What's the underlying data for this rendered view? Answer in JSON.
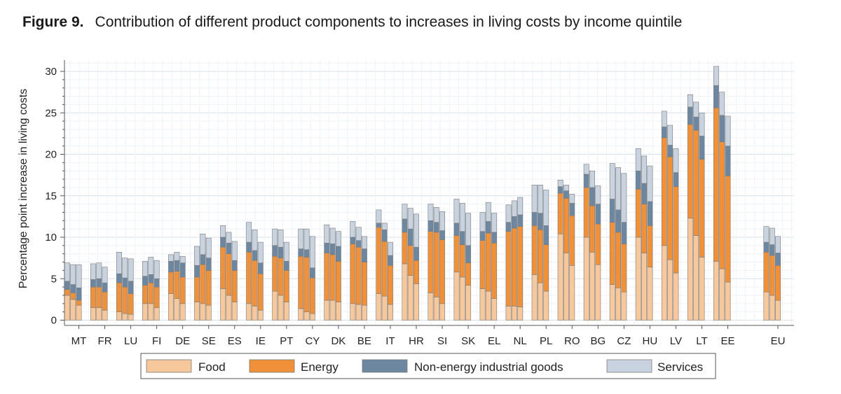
{
  "figure": {
    "number": "Figure 9.",
    "caption": "Contribution of different product components to increases in living costs by income quintile"
  },
  "chart_data": {
    "type": "bar",
    "stacked": true,
    "grouped_by": "income quintile",
    "title": "Contribution of different product components to increases in living costs by income quintile",
    "xlabel": "",
    "ylabel": "Percentage point increase in living costs",
    "ylim": [
      0,
      30
    ],
    "yticks": [
      0,
      5,
      10,
      15,
      20,
      25,
      30
    ],
    "grid": true,
    "legend_position": "bottom",
    "series_names": [
      "Food",
      "Energy",
      "Non-energy industrial goods",
      "Services"
    ],
    "colors": {
      "Food": "#f6c89b",
      "Energy": "#f0913a",
      "Non-energy industrial goods": "#6d87a0",
      "Services": "#c8d3df"
    },
    "categories": [
      "MT",
      "FR",
      "LU",
      "FI",
      "DE",
      "SE",
      "ES",
      "IE",
      "PT",
      "CY",
      "DK",
      "BE",
      "IT",
      "HR",
      "SI",
      "SK",
      "EL",
      "NL",
      "PL",
      "RO",
      "BG",
      "CZ",
      "HU",
      "LV",
      "LT",
      "EE",
      "EU"
    ],
    "groups": [
      {
        "country": "MT",
        "quintiles": [
          [
            3.0,
            0.7,
            1.0,
            2.2
          ],
          [
            2.5,
            0.8,
            1.0,
            2.4
          ],
          [
            1.8,
            0.6,
            1.5,
            2.8
          ],
          [
            0,
            0,
            0,
            0
          ],
          [
            0,
            0,
            0,
            0
          ]
        ]
      },
      {
        "country": "FR",
        "quintiles": [
          [
            1.5,
            2.5,
            0.9,
            1.9
          ],
          [
            1.5,
            2.5,
            1.0,
            1.9
          ],
          [
            1.2,
            2.2,
            1.1,
            1.9
          ],
          [
            0,
            0,
            0,
            0
          ],
          [
            0,
            0,
            0,
            0
          ]
        ]
      },
      {
        "country": "LU",
        "quintiles": [
          [
            1.0,
            3.5,
            1.1,
            2.6
          ],
          [
            0.8,
            3.2,
            1.1,
            2.4
          ],
          [
            0.7,
            2.5,
            1.5,
            2.7
          ],
          [
            0,
            0,
            0,
            0
          ],
          [
            0,
            0,
            0,
            0
          ]
        ]
      },
      {
        "country": "FI",
        "quintiles": [
          [
            2.0,
            2.2,
            1.1,
            1.8
          ],
          [
            2.0,
            2.5,
            1.0,
            2.1
          ],
          [
            1.5,
            2.5,
            1.0,
            2.2
          ],
          [
            0,
            0,
            0,
            0
          ],
          [
            0,
            0,
            0,
            0
          ]
        ]
      },
      {
        "country": "DE",
        "quintiles": [
          [
            3.2,
            2.6,
            1.3,
            0.8
          ],
          [
            2.6,
            3.3,
            1.3,
            1.0
          ],
          [
            2.0,
            3.2,
            1.7,
            0.8
          ],
          [
            0,
            0,
            0,
            0
          ],
          [
            0,
            0,
            0,
            0
          ]
        ]
      },
      {
        "country": "SE",
        "quintiles": [
          [
            2.2,
            3.0,
            1.4,
            2.3
          ],
          [
            2.0,
            4.7,
            1.2,
            2.5
          ],
          [
            1.8,
            4.2,
            1.5,
            2.4
          ],
          [
            0,
            0,
            0,
            0
          ],
          [
            0,
            0,
            0,
            0
          ]
        ]
      },
      {
        "country": "ES",
        "quintiles": [
          [
            3.8,
            5.0,
            1.2,
            1.4
          ],
          [
            3.0,
            5.0,
            1.3,
            1.3
          ],
          [
            2.2,
            3.8,
            1.2,
            2.3
          ],
          [
            0,
            0,
            0,
            0
          ],
          [
            0,
            0,
            0,
            0
          ]
        ]
      },
      {
        "country": "IE",
        "quintiles": [
          [
            2.0,
            6.2,
            1.2,
            2.4
          ],
          [
            1.7,
            5.5,
            1.2,
            2.5
          ],
          [
            1.2,
            4.4,
            1.3,
            2.5
          ],
          [
            0,
            0,
            0,
            0
          ],
          [
            0,
            0,
            0,
            0
          ]
        ]
      },
      {
        "country": "PT",
        "quintiles": [
          [
            3.5,
            4.2,
            1.3,
            2.0
          ],
          [
            3.0,
            4.5,
            1.3,
            2.1
          ],
          [
            2.2,
            3.8,
            1.1,
            2.3
          ],
          [
            0,
            0,
            0,
            0
          ],
          [
            0,
            0,
            0,
            0
          ]
        ]
      },
      {
        "country": "CY",
        "quintiles": [
          [
            1.4,
            6.3,
            0.9,
            2.4
          ],
          [
            1.0,
            6.6,
            0.9,
            2.5
          ],
          [
            0.8,
            4.3,
            1.2,
            3.8
          ],
          [
            0,
            0,
            0,
            0
          ],
          [
            0,
            0,
            0,
            0
          ]
        ]
      },
      {
        "country": "DK",
        "quintiles": [
          [
            2.4,
            5.7,
            1.2,
            2.2
          ],
          [
            2.4,
            5.5,
            1.3,
            1.9
          ],
          [
            2.2,
            4.9,
            1.8,
            1.8
          ],
          [
            0,
            0,
            0,
            0
          ],
          [
            0,
            0,
            0,
            0
          ]
        ]
      },
      {
        "country": "BE",
        "quintiles": [
          [
            2.0,
            7.2,
            0.8,
            1.9
          ],
          [
            1.9,
            6.9,
            0.8,
            1.6
          ],
          [
            1.8,
            5.2,
            1.6,
            1.5
          ],
          [
            0,
            0,
            0,
            0
          ],
          [
            0,
            0,
            0,
            0
          ]
        ]
      },
      {
        "country": "IT",
        "quintiles": [
          [
            3.2,
            8.0,
            0.5,
            1.6
          ],
          [
            2.9,
            6.6,
            1.4,
            0.8
          ],
          [
            1.9,
            4.7,
            1.2,
            1.6
          ],
          [
            0,
            0,
            0,
            0
          ],
          [
            0,
            0,
            0,
            0
          ]
        ]
      },
      {
        "country": "HR",
        "quintiles": [
          [
            6.8,
            3.8,
            1.6,
            1.8
          ],
          [
            5.4,
            3.6,
            2.0,
            2.5
          ],
          [
            4.4,
            2.8,
            1.6,
            4.0
          ],
          [
            0,
            0,
            0,
            0
          ],
          [
            0,
            0,
            0,
            0
          ]
        ]
      },
      {
        "country": "SI",
        "quintiles": [
          [
            3.3,
            7.4,
            1.3,
            2.0
          ],
          [
            2.8,
            7.8,
            1.2,
            1.8
          ],
          [
            2.0,
            7.7,
            1.1,
            2.3
          ],
          [
            0,
            0,
            0,
            0
          ],
          [
            0,
            0,
            0,
            0
          ]
        ]
      },
      {
        "country": "SK",
        "quintiles": [
          [
            5.8,
            4.4,
            1.5,
            2.9
          ],
          [
            5.2,
            3.9,
            1.6,
            3.4
          ],
          [
            4.2,
            2.7,
            2.1,
            3.9
          ],
          [
            0,
            0,
            0,
            0
          ],
          [
            0,
            0,
            0,
            0
          ]
        ]
      },
      {
        "country": "EL",
        "quintiles": [
          [
            3.8,
            5.8,
            1.1,
            2.3
          ],
          [
            3.5,
            7.0,
            1.4,
            2.3
          ],
          [
            2.6,
            6.7,
            1.3,
            2.3
          ],
          [
            0,
            0,
            0,
            0
          ],
          [
            0,
            0,
            0,
            0
          ]
        ]
      },
      {
        "country": "NL",
        "quintiles": [
          [
            1.7,
            9.0,
            1.1,
            2.1
          ],
          [
            1.7,
            9.4,
            1.4,
            1.9
          ],
          [
            1.6,
            9.7,
            1.4,
            2.1
          ],
          [
            0,
            0,
            0,
            0
          ],
          [
            0,
            0,
            0,
            0
          ]
        ]
      },
      {
        "country": "PL",
        "quintiles": [
          [
            5.5,
            5.9,
            1.6,
            3.3
          ],
          [
            4.5,
            6.4,
            2.0,
            3.4
          ],
          [
            3.5,
            5.6,
            2.3,
            4.3
          ],
          [
            0,
            0,
            0,
            0
          ],
          [
            0,
            0,
            0,
            0
          ]
        ]
      },
      {
        "country": "RO",
        "quintiles": [
          [
            10.4,
            4.9,
            0.8,
            0.8
          ],
          [
            8.1,
            6.6,
            0.9,
            0.7
          ],
          [
            6.6,
            6.0,
            1.5,
            1.1
          ],
          [
            0,
            0,
            0,
            0
          ],
          [
            0,
            0,
            0,
            0
          ]
        ]
      },
      {
        "country": "BG",
        "quintiles": [
          [
            10.0,
            6.0,
            1.6,
            1.2
          ],
          [
            8.2,
            5.6,
            2.2,
            2.0
          ],
          [
            6.7,
            4.9,
            2.4,
            2.2
          ],
          [
            0,
            0,
            0,
            0
          ],
          [
            0,
            0,
            0,
            0
          ]
        ]
      },
      {
        "country": "CZ",
        "quintiles": [
          [
            4.3,
            7.5,
            2.8,
            4.3
          ],
          [
            3.9,
            6.7,
            2.7,
            5.1
          ],
          [
            3.4,
            5.8,
            2.6,
            5.9
          ],
          [
            0,
            0,
            0,
            0
          ],
          [
            0,
            0,
            0,
            0
          ]
        ]
      },
      {
        "country": "HU",
        "quintiles": [
          [
            10.0,
            5.8,
            2.2,
            2.7
          ],
          [
            8.1,
            5.9,
            2.5,
            3.3
          ],
          [
            6.4,
            5.0,
            2.9,
            4.3
          ],
          [
            0,
            0,
            0,
            0
          ],
          [
            0,
            0,
            0,
            0
          ]
        ]
      },
      {
        "country": "LV",
        "quintiles": [
          [
            9.0,
            13.0,
            1.3,
            1.9
          ],
          [
            7.3,
            12.4,
            1.4,
            2.4
          ],
          [
            5.7,
            10.4,
            1.7,
            2.9
          ],
          [
            0,
            0,
            0,
            0
          ],
          [
            0,
            0,
            0,
            0
          ]
        ]
      },
      {
        "country": "LT",
        "quintiles": [
          [
            12.3,
            11.3,
            2.1,
            1.5
          ],
          [
            10.2,
            12.7,
            1.6,
            1.8
          ],
          [
            7.6,
            11.8,
            2.8,
            2.8
          ],
          [
            0,
            0,
            0,
            0
          ],
          [
            0,
            0,
            0,
            0
          ]
        ]
      },
      {
        "country": "EE",
        "quintiles": [
          [
            7.1,
            18.5,
            2.7,
            2.3
          ],
          [
            6.2,
            15.3,
            3.2,
            2.8
          ],
          [
            4.6,
            12.8,
            3.6,
            3.6
          ],
          [
            0,
            0,
            0,
            0
          ],
          [
            0,
            0,
            0,
            0
          ]
        ]
      },
      {
        "country": "EU",
        "quintiles": [
          [
            3.4,
            4.8,
            1.2,
            1.9
          ],
          [
            3.0,
            4.8,
            1.3,
            2.0
          ],
          [
            2.4,
            4.2,
            1.5,
            2.0
          ],
          [
            0,
            0,
            0,
            0
          ],
          [
            0,
            0,
            0,
            0
          ]
        ]
      }
    ]
  }
}
